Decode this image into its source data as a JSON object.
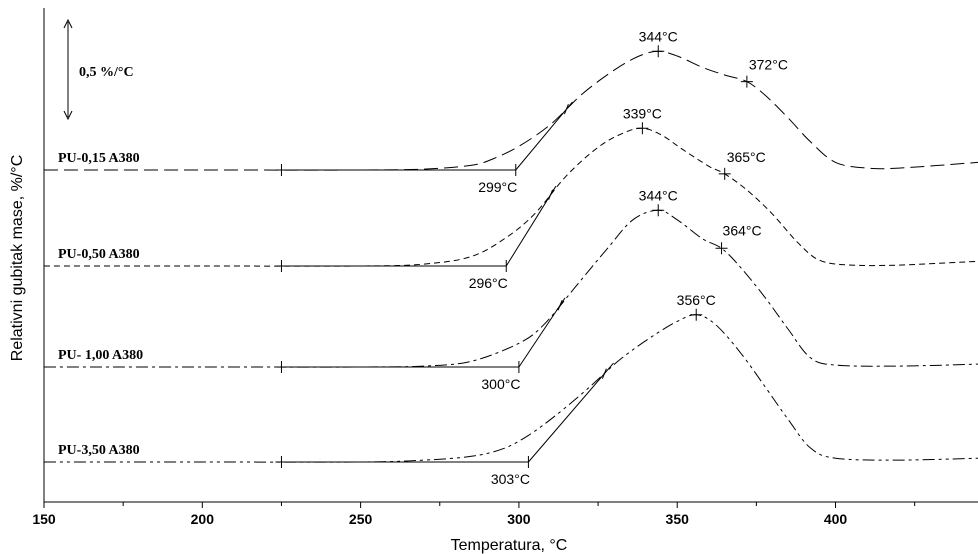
{
  "chart_data": {
    "type": "line",
    "title": "",
    "xlabel": "Temperatura, °C",
    "ylabel": "Relativni gubitak mase, %/°C",
    "xlim": [
      150,
      445
    ],
    "x_ticks": [
      "150",
      "200",
      "250",
      "300",
      "350",
      "400"
    ],
    "scale_bar_label": "0,5 %/°C",
    "grid": false,
    "series": [
      {
        "name": "PU-0,15 A380",
        "dash": "14 6",
        "x": [
          150,
          200,
          250,
          270,
          285,
          292,
          300,
          310,
          320,
          330,
          338,
          344,
          350,
          358,
          365,
          372,
          378,
          385,
          392,
          400,
          410,
          420,
          445
        ],
        "y": [
          0,
          0,
          0,
          0.01,
          0.05,
          0.12,
          0.25,
          0.48,
          0.8,
          1.05,
          1.2,
          1.25,
          1.2,
          1.08,
          1.0,
          0.93,
          0.78,
          0.55,
          0.3,
          0.08,
          0.02,
          0.02,
          0.08
        ],
        "annotations": [
          {
            "x": 299,
            "y": 0,
            "label": "299°C",
            "placement": "below"
          },
          {
            "x": 344,
            "y": 1.25,
            "label": "344°C",
            "placement": "above"
          },
          {
            "x": 372,
            "y": 0.93,
            "label": "372°C",
            "placement": "above"
          }
        ]
      },
      {
        "name": "PU-0,50 A380",
        "dash": "6 4",
        "x": [
          150,
          200,
          250,
          270,
          285,
          296,
          305,
          315,
          325,
          333,
          339,
          345,
          352,
          360,
          365,
          372,
          380,
          388,
          395,
          405,
          420,
          445
        ],
        "y": [
          0,
          0,
          0,
          0.02,
          0.1,
          0.3,
          0.55,
          0.95,
          1.25,
          1.4,
          1.45,
          1.38,
          1.22,
          1.05,
          0.97,
          0.8,
          0.55,
          0.25,
          0.06,
          0.01,
          0.01,
          0.05
        ],
        "annotations": [
          {
            "x": 296,
            "y": 0,
            "label": "296°C",
            "placement": "below"
          },
          {
            "x": 339,
            "y": 1.45,
            "label": "339°C",
            "placement": "above"
          },
          {
            "x": 365,
            "y": 0.97,
            "label": "365°C",
            "placement": "above"
          }
        ]
      },
      {
        "name": "PU- 1,00 A380",
        "dash": "12 4 3 4",
        "x": [
          150,
          200,
          250,
          270,
          285,
          300,
          308,
          318,
          328,
          336,
          344,
          350,
          358,
          364,
          370,
          378,
          385,
          392,
          400,
          420,
          445
        ],
        "y": [
          0,
          0,
          0,
          0.01,
          0.06,
          0.25,
          0.45,
          0.85,
          1.25,
          1.55,
          1.65,
          1.55,
          1.35,
          1.25,
          1.05,
          0.72,
          0.4,
          0.1,
          0.02,
          0.01,
          0.03
        ],
        "annotations": [
          {
            "x": 300,
            "y": 0,
            "label": "300°C",
            "placement": "below"
          },
          {
            "x": 344,
            "y": 1.65,
            "label": "344°C",
            "placement": "above"
          },
          {
            "x": 364,
            "y": 1.25,
            "label": "364°C",
            "placement": "right"
          }
        ]
      },
      {
        "name": "PU-3,50 A380",
        "dash": "12 4 3 4 3 4",
        "x": [
          150,
          200,
          250,
          270,
          285,
          295,
          303,
          312,
          322,
          332,
          342,
          350,
          356,
          362,
          370,
          378,
          385,
          392,
          400,
          420,
          445
        ],
        "y": [
          0,
          0,
          0,
          0.02,
          0.06,
          0.14,
          0.28,
          0.5,
          0.78,
          1.08,
          1.32,
          1.48,
          1.55,
          1.45,
          1.15,
          0.78,
          0.45,
          0.15,
          0.04,
          0.02,
          0.04
        ],
        "annotations": [
          {
            "x": 303,
            "y": 0,
            "label": "303°C",
            "placement": "below"
          },
          {
            "x": 356,
            "y": 1.55,
            "label": "356°C",
            "placement": "above"
          }
        ]
      }
    ]
  }
}
